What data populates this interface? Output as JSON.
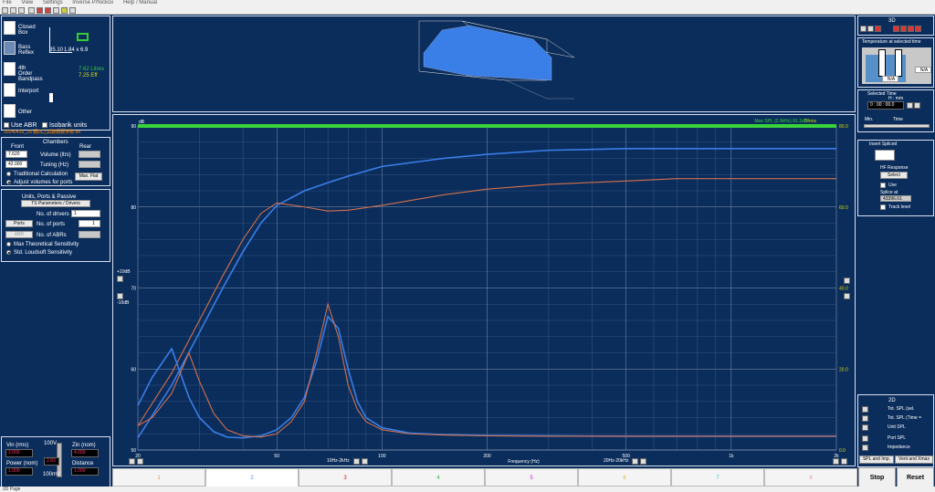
{
  "menubar": {
    "items": [
      "File",
      "View",
      "Settings",
      "Inverse P/Nickox",
      "Help / Manual"
    ]
  },
  "enclosures": {
    "closed_box": "Closed Box",
    "bass_reflex": "Bass Reflex",
    "bandpass": "4th Order Bandpass",
    "interport": "Interport",
    "other": "Other",
    "dim1": "35.10",
    "dim2": "1.84 x 6.9",
    "green1": "7.62 Litres",
    "green2": "7.25 Eff",
    "use_abr": "Use ABR",
    "isobarik": "Isobarik units",
    "filename": "20240415_JS 鋼四之試錄鋼腰參數.txt"
  },
  "chambers": {
    "title": "Chambers",
    "front": "Front",
    "rear": "Rear",
    "volume_value": "7.620",
    "volume_label": "Volume (ltrs)",
    "tuning_value": "42.000",
    "tuning_label": "Tuning (Hz)",
    "trad_calc": "Traditional Calculation",
    "max_flat": "Max. Flat",
    "adjust_vol": "Adjust volumes for ports"
  },
  "units": {
    "title": "Units, Ports & Passive",
    "ts_btn": "TS Parameters / Drivers",
    "no_drivers": "No. of drivers",
    "no_drivers_val": "1",
    "ports_btn": "Ports",
    "no_ports": "No. of ports",
    "no_ports_val": "1",
    "abr_btn": "ABR",
    "no_abrs": "No. of ABRs",
    "max_sens": "Max Theoretical Sensitivity",
    "std_sens": "Std. Loudsoft Sensitivity"
  },
  "signal": {
    "vin_label": "Vin (rms)",
    "vin": "2.000",
    "zin_label": "Zin (nom)",
    "zin": "4.000",
    "power_label": "Power (nom)",
    "power": "1.000",
    "distance_label": "Distance",
    "distance": "1.000",
    "v100": "100V",
    "mv100": "100mV",
    "slider_val": "2.83"
  },
  "graph": {
    "db_label": "dB",
    "ohms_label": "Ohms",
    "green_label": "Max SPL (2.0kHz) 91.1dB",
    "plus10": "+10dB",
    "minus10": "-10dB",
    "freq_label": "Frequency (Hz)",
    "band1": "10Hz-2kHz",
    "band2": "20Hz-20kHz",
    "left_ticks": [
      "90",
      "80",
      "70",
      "60",
      "50"
    ],
    "right_ticks": [
      "80.0",
      "60.0",
      "40.0",
      "20.0",
      "0.0"
    ],
    "freq_ticks": [
      "20",
      "50",
      "100",
      "200",
      "500",
      "1k",
      "2k"
    ]
  },
  "right_panel": {
    "title_3d": "3D",
    "temp_label": "Temperature at selected time",
    "na1": "N/A",
    "na2": "N/A",
    "selected_time": "Selected Time",
    "hmm": "H : mm",
    "time_val": "0 : 00 : 00.0",
    "min": "Min.",
    "time": "Time",
    "insert_spliced": "Insert Spliced",
    "hf_response": "HF Response",
    "select": "Select",
    "use": "Use",
    "splice_at": "Splice at",
    "splice_val": "43396.61",
    "track_level": "Track level",
    "title_2d": "2D",
    "legend": [
      "Tot. SPL (sel.",
      "Tot. SPL (Time =",
      "Unit SPL",
      "Port SPL",
      "Impedance"
    ],
    "spl_imp": "SPL and Imp.",
    "vent": "Vent and Xmax",
    "stop": "Stop",
    "reset": "Reset"
  },
  "tabs": [
    "1",
    "2",
    "3",
    "4",
    "5",
    "6",
    "7",
    "8"
  ],
  "tab_colors": [
    "#e89050",
    "#4a8ee8",
    "#cc2020",
    "#40b040",
    "#c030c0",
    "#d0c040",
    "#40c0c0",
    "#e0a0a0"
  ],
  "status": "2D Page",
  "colors": {
    "bg": "#0b2d5c",
    "grid": "#3d5a85",
    "blue": "#3a7ee8",
    "orange": "#d4704a",
    "green": "#3ad43a",
    "yellow": "#dddd00"
  },
  "chart_data": {
    "type": "line",
    "xscale": "log",
    "xlim": [
      20,
      2000
    ],
    "ylim": [
      50,
      90
    ],
    "y2lim": [
      0,
      80
    ],
    "ylabel": "dB",
    "y2label": "Ohms",
    "xlabel": "Frequency (Hz)",
    "series": [
      {
        "name": "Total SPL",
        "axis": "left",
        "color": "#3a7ee8",
        "x": [
          20,
          25,
          30,
          35,
          40,
          45,
          50,
          60,
          70,
          80,
          100,
          150,
          200,
          300,
          500,
          700,
          1000,
          1500,
          2000
        ],
        "y": [
          51.5,
          58.0,
          64.5,
          70.0,
          74.5,
          78.0,
          80.2,
          82.0,
          83.0,
          83.8,
          85.0,
          86.0,
          86.5,
          87.0,
          87.2,
          87.2,
          87.2,
          87.2,
          87.2
        ]
      },
      {
        "name": "Unit SPL",
        "axis": "left",
        "color": "#d4704a",
        "x": [
          20,
          25,
          30,
          35,
          40,
          45,
          50,
          60,
          70,
          80,
          100,
          150,
          200,
          300,
          500,
          700,
          1000,
          1500,
          2000
        ],
        "y": [
          53.0,
          59.5,
          66.0,
          71.5,
          76.0,
          79.2,
          80.5,
          80.0,
          79.5,
          79.6,
          80.2,
          81.5,
          82.2,
          82.8,
          83.2,
          83.5,
          83.5,
          83.5,
          83.5
        ]
      },
      {
        "name": "Impedance",
        "axis": "right",
        "color": "#3a7ee8",
        "x": [
          20,
          22,
          25,
          28,
          30,
          33,
          36,
          40,
          45,
          50,
          55,
          60,
          65,
          70,
          75,
          80,
          85,
          90,
          100,
          120,
          150,
          200,
          300,
          500,
          700,
          1000,
          1500,
          2000
        ],
        "y": [
          11,
          18,
          25,
          13,
          8,
          4.5,
          3.2,
          3,
          3.5,
          5,
          8,
          13,
          22,
          33,
          30,
          20,
          12,
          8,
          5.5,
          4.2,
          3.8,
          3.6,
          3.5,
          3.4,
          3.4,
          3.4,
          3.4,
          3.4
        ]
      },
      {
        "name": "Impedance (tab 1)",
        "axis": "right",
        "color": "#d4704a",
        "x": [
          20,
          22,
          25,
          28,
          30,
          33,
          36,
          40,
          45,
          50,
          55,
          60,
          65,
          70,
          75,
          80,
          85,
          90,
          100,
          120,
          150,
          200,
          300,
          500,
          700,
          1000,
          1500,
          2000
        ],
        "y": [
          6,
          8,
          14,
          24,
          17,
          9,
          5,
          3.5,
          3.2,
          4,
          7,
          12,
          24,
          36,
          28,
          16,
          10,
          7,
          5,
          4,
          3.7,
          3.5,
          3.4,
          3.4,
          3.4,
          3.4,
          3.4,
          3.4
        ]
      }
    ]
  }
}
